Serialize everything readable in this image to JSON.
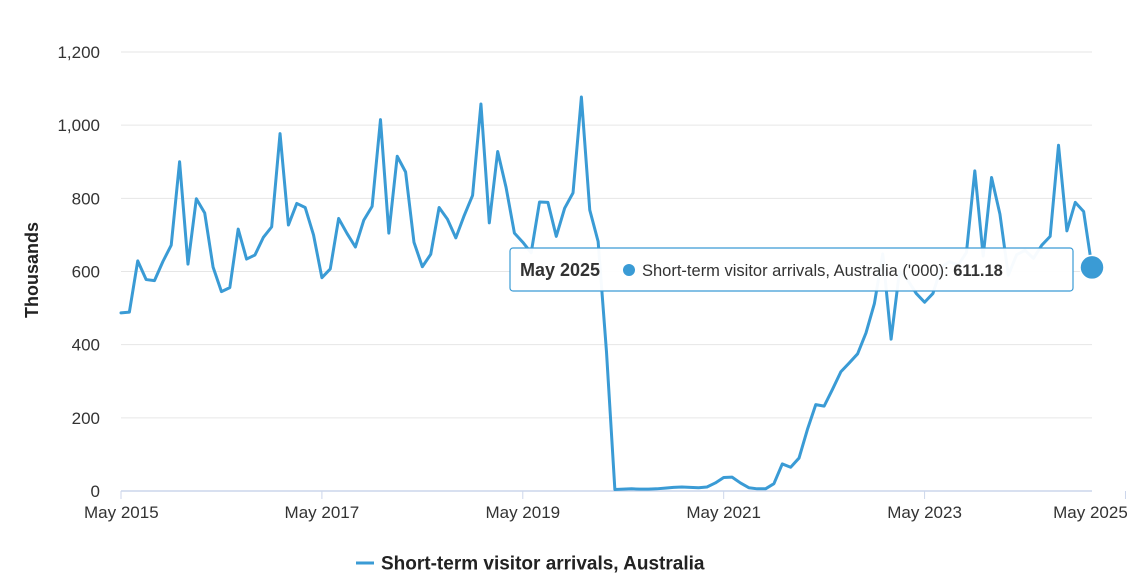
{
  "colors": {
    "series": "#3a9bd5",
    "grid": "#e6e6e6",
    "axis": "#ccd6eb",
    "tooltip_border": "#3a9bd5"
  },
  "chart_data": {
    "type": "line",
    "ylabel": "Thousands",
    "ylim": [
      0,
      1200
    ],
    "y_ticks": [
      0,
      200,
      400,
      600,
      800,
      1000,
      1200
    ],
    "y_tick_labels": [
      "0",
      "200",
      "400",
      "600",
      "800",
      "1,000",
      "1,200"
    ],
    "x_tick_labels": [
      "May 2015",
      "May 2017",
      "May 2019",
      "May 2021",
      "May 2023",
      "May 2025"
    ],
    "x_start": "2015-05",
    "grid": true,
    "legend_position": "bottom-center",
    "series": [
      {
        "name": "Short-term visitor arrivals, Australia",
        "values": [
          487,
          489,
          629,
          578,
          575,
          627,
          672,
          900,
          620,
          799,
          760,
          612,
          545,
          556,
          716,
          634,
          645,
          693,
          722,
          977,
          727,
          786,
          775,
          700,
          583,
          607,
          745,
          704,
          667,
          740,
          778,
          1015,
          705,
          915,
          872,
          680,
          613,
          647,
          775,
          743,
          692,
          753,
          808,
          1058,
          733,
          928,
          830,
          705,
          680,
          651,
          790,
          789,
          696,
          773,
          815,
          1077,
          768,
          682,
          380,
          4,
          5,
          6,
          5,
          5,
          6,
          8,
          10,
          11,
          10,
          9,
          11,
          22,
          37,
          38,
          22,
          9,
          6,
          6,
          20,
          74,
          65,
          90,
          168,
          236,
          232,
          278,
          326,
          350,
          375,
          432,
          512,
          648,
          415,
          600,
          576,
          540,
          516,
          540,
          612,
          627,
          617,
          652,
          875,
          642,
          857,
          757,
          590,
          646,
          658,
          636,
          672,
          696,
          945,
          711,
          789,
          764,
          611.18
        ]
      }
    ],
    "tooltip": {
      "date": "May 2025",
      "series_label": "Short-term visitor arrivals, Australia ('000): ",
      "value": "611.18"
    }
  }
}
